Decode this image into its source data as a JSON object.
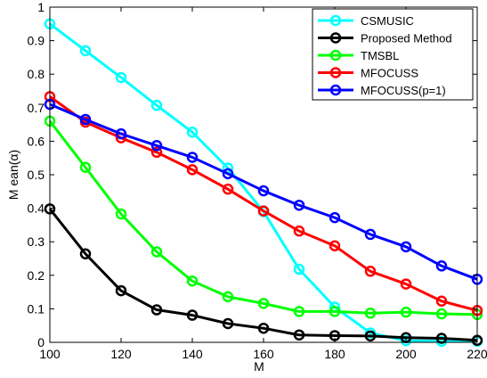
{
  "chart_data": {
    "type": "line",
    "title": "",
    "xlabel": "M",
    "ylabel": "M ean(α)",
    "xlim": [
      100,
      220
    ],
    "ylim": [
      0,
      1
    ],
    "xticks": [
      100,
      120,
      140,
      160,
      180,
      200,
      220
    ],
    "yticks": [
      0,
      0.1,
      0.2,
      0.3,
      0.4,
      0.5,
      0.6,
      0.7,
      0.8,
      0.9,
      1
    ],
    "xtick_labels": [
      "100",
      "120",
      "140",
      "160",
      "180",
      "200",
      "220"
    ],
    "ytick_labels": [
      "0",
      "0.1",
      "0.2",
      "0.3",
      "0.4",
      "0.5",
      "0.6",
      "0.7",
      "0.8",
      "0.9",
      "1"
    ],
    "grid": false,
    "legend_position": "top-right",
    "x": [
      100,
      110,
      120,
      130,
      140,
      150,
      160,
      170,
      180,
      190,
      200,
      210,
      220
    ],
    "series": [
      {
        "name": "CSMUSIC",
        "color": "#00ffff",
        "marker": "circle",
        "values": [
          0.95,
          0.87,
          0.79,
          0.707,
          0.627,
          0.52,
          0.39,
          0.218,
          0.105,
          0.028,
          0.005,
          0.003,
          0.003
        ]
      },
      {
        "name": "Proposed Method",
        "color": "#000000",
        "marker": "circle",
        "values": [
          0.398,
          0.264,
          0.154,
          0.097,
          0.081,
          0.056,
          0.042,
          0.022,
          0.02,
          0.019,
          0.014,
          0.012,
          0.006
        ]
      },
      {
        "name": "TMSBL",
        "color": "#00ff00",
        "marker": "circle",
        "values": [
          0.66,
          0.522,
          0.383,
          0.27,
          0.183,
          0.136,
          0.116,
          0.092,
          0.092,
          0.087,
          0.09,
          0.085,
          0.083
        ]
      },
      {
        "name": "MFOCUSS",
        "color": "#ff0000",
        "marker": "circle",
        "values": [
          0.733,
          0.657,
          0.61,
          0.567,
          0.515,
          0.457,
          0.392,
          0.332,
          0.288,
          0.212,
          0.174,
          0.123,
          0.095
        ]
      },
      {
        "name": "MFOCUSS(p=1)",
        "color": "#0000ff",
        "marker": "circle",
        "values": [
          0.71,
          0.665,
          0.622,
          0.587,
          0.552,
          0.503,
          0.452,
          0.409,
          0.372,
          0.322,
          0.285,
          0.228,
          0.188
        ]
      }
    ]
  }
}
